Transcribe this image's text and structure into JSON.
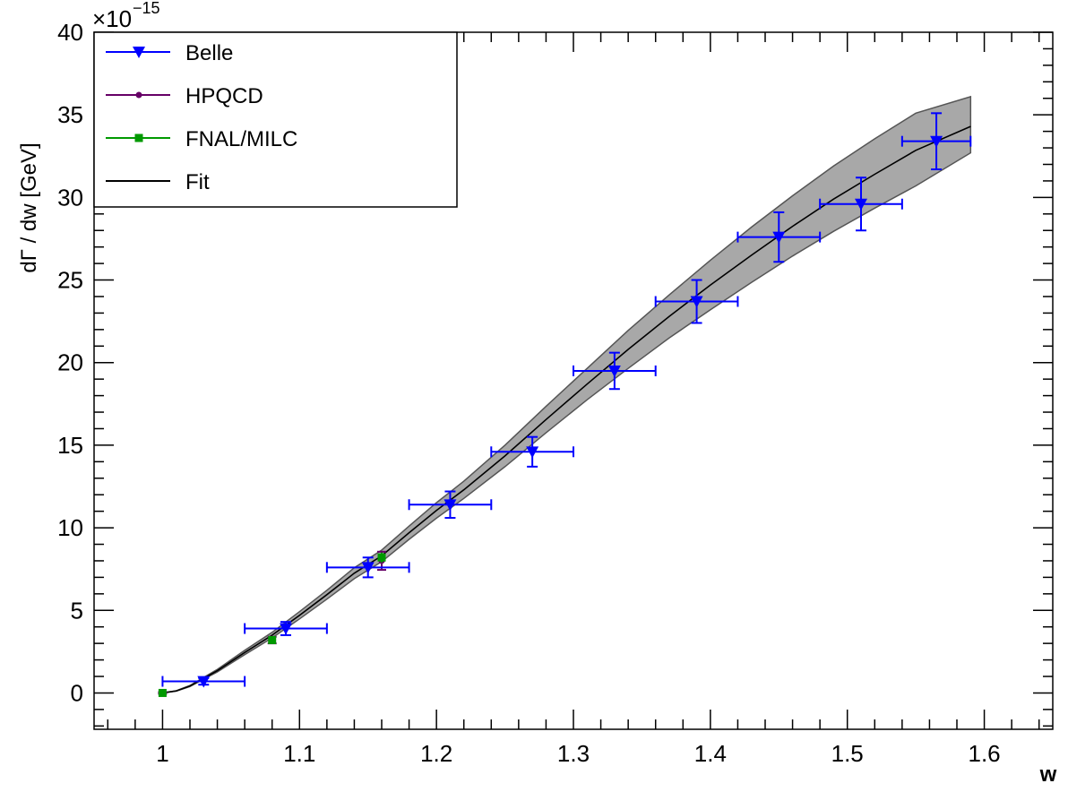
{
  "chart_data": {
    "type": "scatter",
    "xlabel": "w",
    "ylabel": "dΓ / dw [GeV]",
    "y_exponent": "−15",
    "y_exponent_prefix": "×10",
    "xlim": [
      0.95,
      1.65
    ],
    "ylim": [
      -2.2,
      40
    ],
    "x_ticks": [
      1,
      1.1,
      1.2,
      1.3,
      1.4,
      1.5,
      1.6
    ],
    "x_tick_labels": [
      "1",
      "1.1",
      "1.2",
      "1.3",
      "1.4",
      "1.5",
      "1.6"
    ],
    "y_ticks": [
      0,
      5,
      10,
      15,
      20,
      25,
      30,
      35,
      40
    ],
    "y_tick_labels": [
      "0",
      "5",
      "10",
      "15",
      "20",
      "25",
      "30",
      "35",
      "40"
    ],
    "legend_position": "top-left",
    "colors": {
      "belle": "#0000ff",
      "hpqcd": "#660066",
      "fnal": "#009900",
      "fit": "#000000",
      "band": "#a8a8a8"
    },
    "series": [
      {
        "name": "Belle",
        "marker": "triangle-down",
        "points": [
          {
            "x": 1.03,
            "xerr": 0.03,
            "y": 0.7,
            "yerr": 0.2
          },
          {
            "x": 1.09,
            "xerr": 0.03,
            "y": 3.9,
            "yerr": 0.4
          },
          {
            "x": 1.15,
            "xerr": 0.03,
            "y": 7.6,
            "yerr": 0.6
          },
          {
            "x": 1.21,
            "xerr": 0.03,
            "y": 11.4,
            "yerr": 0.8
          },
          {
            "x": 1.27,
            "xerr": 0.03,
            "y": 14.6,
            "yerr": 0.9
          },
          {
            "x": 1.33,
            "xerr": 0.03,
            "y": 19.5,
            "yerr": 1.1
          },
          {
            "x": 1.39,
            "xerr": 0.03,
            "y": 23.7,
            "yerr": 1.3
          },
          {
            "x": 1.45,
            "xerr": 0.03,
            "y": 27.6,
            "yerr": 1.5
          },
          {
            "x": 1.51,
            "xerr": 0.03,
            "y": 29.6,
            "yerr": 1.6
          },
          {
            "x": 1.565,
            "xerr": 0.025,
            "y": 33.4,
            "yerr": 1.7
          }
        ]
      },
      {
        "name": "HPQCD",
        "marker": "circle",
        "points": [
          {
            "x": 1.0,
            "y": 0.0,
            "yerr": 0.05
          },
          {
            "x": 1.08,
            "y": 3.2,
            "yerr": 0.2
          },
          {
            "x": 1.16,
            "y": 8.0,
            "yerr": 0.55
          }
        ]
      },
      {
        "name": "FNAL/MILC",
        "marker": "square",
        "points": [
          {
            "x": 1.0,
            "y": 0.0,
            "yerr": 0.05
          },
          {
            "x": 1.08,
            "y": 3.2,
            "yerr": 0.15
          },
          {
            "x": 1.16,
            "y": 8.2,
            "yerr": 0.3
          }
        ]
      },
      {
        "name": "Fit",
        "line": true,
        "x": [
          1.0,
          1.01,
          1.02,
          1.04,
          1.06,
          1.08,
          1.1,
          1.12,
          1.14,
          1.16,
          1.18,
          1.2,
          1.22,
          1.25,
          1.28,
          1.31,
          1.34,
          1.37,
          1.4,
          1.43,
          1.46,
          1.49,
          1.52,
          1.55,
          1.59
        ],
        "y": [
          0.0,
          0.12,
          0.42,
          1.35,
          2.45,
          3.5,
          4.7,
          5.95,
          7.25,
          8.3,
          9.7,
          11.05,
          12.3,
          14.35,
          16.55,
          18.7,
          20.8,
          22.8,
          24.7,
          26.5,
          28.25,
          29.9,
          31.4,
          32.85,
          34.3
        ],
        "band_lo": [
          0.0,
          0.11,
          0.39,
          1.27,
          2.32,
          3.33,
          4.48,
          5.68,
          6.92,
          7.95,
          9.3,
          10.58,
          11.78,
          13.7,
          15.75,
          17.75,
          19.65,
          21.5,
          23.2,
          24.85,
          26.45,
          27.95,
          29.35,
          30.7,
          32.7
        ],
        "band_hi": [
          0.0,
          0.13,
          0.45,
          1.43,
          2.58,
          3.67,
          4.92,
          6.22,
          7.58,
          8.65,
          10.1,
          11.52,
          12.82,
          15.0,
          17.35,
          19.65,
          21.95,
          24.1,
          26.2,
          28.2,
          30.1,
          31.9,
          33.55,
          35.1,
          36.1
        ]
      }
    ]
  }
}
